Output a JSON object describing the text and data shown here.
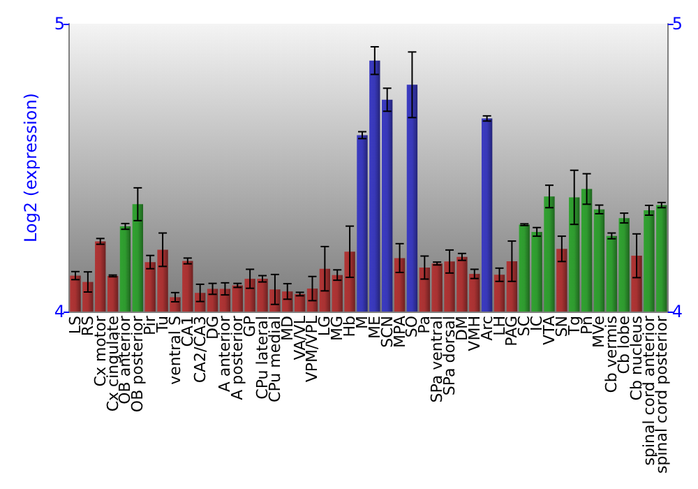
{
  "chart_data": {
    "type": "bar",
    "ylabel": "Log2 (expression)",
    "categories": [
      "LS",
      "RS",
      "Cx motor",
      "Cx cingulate",
      "OB anterior",
      "OB posterior",
      "Pir",
      "Tu",
      "ventral S",
      "CA1",
      "CA2/CA3",
      "DG",
      "A anterior",
      "A posterior",
      "GP",
      "CPu lateral",
      "CPu medial",
      "MD",
      "VA/VL",
      "VPM/VPL",
      "LG",
      "MG",
      "Hb",
      "M",
      "ME",
      "SCN",
      "MPA",
      "SO",
      "Pa",
      "SPa ventral",
      "SPa dorsal",
      "DM",
      "VMH",
      "Arc",
      "LH",
      "PAG",
      "SC",
      "IC",
      "VTA",
      "SN",
      "Tg",
      "Pn",
      "MVe",
      "Cb vermis",
      "Cb lobe",
      "Cb nucleus",
      "spinal cord anterior",
      "spinal cord posterior"
    ],
    "values": [
      4.125,
      4.103,
      4.244,
      4.124,
      4.296,
      4.373,
      4.172,
      4.215,
      4.05,
      4.176,
      4.065,
      4.079,
      4.079,
      4.091,
      4.114,
      4.114,
      4.077,
      4.07,
      4.061,
      4.08,
      4.149,
      4.127,
      4.208,
      4.613,
      4.872,
      4.736,
      4.186,
      4.788,
      4.153,
      4.167,
      4.174,
      4.19,
      4.131,
      4.671,
      4.128,
      4.175,
      4.302,
      4.277,
      4.4,
      4.218,
      4.397,
      4.426,
      4.355,
      4.263,
      4.325,
      4.194,
      4.352,
      4.37
    ],
    "errors": [
      0.014,
      0.035,
      0.01,
      0.003,
      0.01,
      0.057,
      0.023,
      0.058,
      0.016,
      0.01,
      0.03,
      0.019,
      0.021,
      0.007,
      0.033,
      0.011,
      0.052,
      0.027,
      0.006,
      0.042,
      0.077,
      0.018,
      0.089,
      0.012,
      0.048,
      0.04,
      0.05,
      0.114,
      0.04,
      0.005,
      0.04,
      0.012,
      0.016,
      0.009,
      0.023,
      0.07,
      0.003,
      0.015,
      0.039,
      0.044,
      0.094,
      0.053,
      0.015,
      0.01,
      0.017,
      0.076,
      0.017,
      0.009
    ],
    "colors": [
      "#a83232",
      "#a83232",
      "#a83232",
      "#a83232",
      "#2f9a2f",
      "#2f9a2f",
      "#a83232",
      "#a83232",
      "#a83232",
      "#a83232",
      "#a83232",
      "#a83232",
      "#a83232",
      "#a83232",
      "#a83232",
      "#a83232",
      "#a83232",
      "#a83232",
      "#a83232",
      "#a83232",
      "#a83232",
      "#a83232",
      "#a83232",
      "#3838b8",
      "#3838b8",
      "#3838b8",
      "#a83232",
      "#3838b8",
      "#a83232",
      "#a83232",
      "#a83232",
      "#a83232",
      "#a83232",
      "#3838b8",
      "#a83232",
      "#a83232",
      "#2f9a2f",
      "#2f9a2f",
      "#2f9a2f",
      "#a83232",
      "#2f9a2f",
      "#2f9a2f",
      "#2f9a2f",
      "#2f9a2f",
      "#2f9a2f",
      "#a83232",
      "#2f9a2f",
      "#2f9a2f"
    ],
    "ylim": [
      4,
      5
    ],
    "yticks": [
      4,
      5
    ],
    "y2lim": [
      4,
      5
    ],
    "y2ticks": [
      4,
      5
    ],
    "grid": false
  }
}
